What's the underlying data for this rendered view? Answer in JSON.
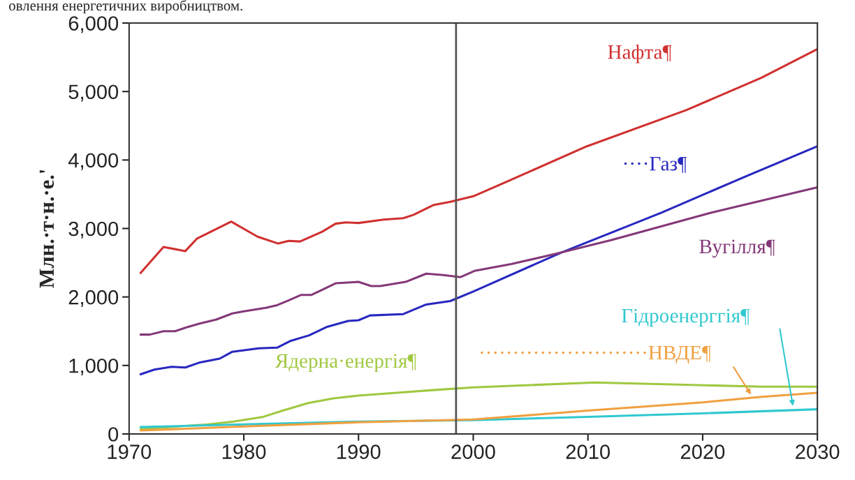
{
  "chart_data": {
    "type": "line",
    "ylabel": "Млн.·т·н.·е.'",
    "annotations": [
      "овлення енергетичних виробництвом."
    ],
    "xlim": [
      1970,
      2030
    ],
    "xticks": [
      1970,
      1980,
      1990,
      2000,
      2010,
      2020,
      2030
    ],
    "ylim": [
      0,
      6000
    ],
    "yticks": [
      {
        "value": 0,
        "label": "0"
      },
      {
        "value": 1000,
        "label": "1,000"
      },
      {
        "value": 2000,
        "label": "2,000"
      },
      {
        "value": 3000,
        "label": "3,000"
      },
      {
        "value": 4000,
        "label": "4,000"
      },
      {
        "value": 5000,
        "label": "5,000"
      },
      {
        "value": 6000,
        "label": "6,000"
      }
    ],
    "grid": false,
    "legend": false,
    "marker": "none",
    "line_style": "solid",
    "ref_lines": [
      {
        "axis": "x",
        "value": 1998.5,
        "color": "#555555"
      }
    ],
    "series": [
      {
        "name": "Нафта¶",
        "color": "#d03030",
        "x": [
          1971,
          1973,
          1974.9,
          1975.9,
          1978.9,
          1981.2,
          1983,
          1983.9,
          1984.9,
          1986.8,
          1988,
          1988.9,
          1990,
          1992.2,
          1993.9,
          1994.8,
          1996.5,
          1998,
          2000,
          2002.2,
          2009.9,
          2018.6,
          2025.1,
          2030
        ],
        "values": [
          2350,
          2730,
          2670,
          2850,
          3100,
          2880,
          2780,
          2820,
          2810,
          2950,
          3070,
          3090,
          3080,
          3130,
          3150,
          3200,
          3340,
          3390,
          3470,
          3630,
          4200,
          4730,
          5200,
          5620
        ]
      },
      {
        "name": "····Газ¶",
        "color": "#2828c0",
        "x": [
          1971,
          1972.2,
          1973.7,
          1974.9,
          1976.1,
          1977.9,
          1979,
          1981.3,
          1982.9,
          1984.1,
          1985.7,
          1987.2,
          1989.1,
          1990,
          1991,
          1993.9,
          1995.9,
          1998,
          2000,
          2007.7,
          2016.4,
          2022.9,
          2030
        ],
        "values": [
          870,
          940,
          980,
          970,
          1040,
          1100,
          1200,
          1250,
          1260,
          1360,
          1440,
          1560,
          1650,
          1660,
          1730,
          1750,
          1890,
          1940,
          2080,
          2650,
          3230,
          3700,
          4200
        ]
      },
      {
        "name": "Вугілля¶",
        "color": "#843878",
        "x": [
          1971,
          1971.8,
          1973,
          1974,
          1974.9,
          1976.1,
          1977.6,
          1979,
          1980,
          1981.9,
          1982.9,
          1983.9,
          1985,
          1985.9,
          1986.9,
          1988,
          1990,
          1991.1,
          1991.9,
          1994.1,
          1995.9,
          1997.4,
          1998.9,
          2000.1,
          2003.3,
          2007.2,
          2012,
          2020.7,
          2030
        ],
        "values": [
          1450,
          1450,
          1500,
          1500,
          1550,
          1610,
          1670,
          1760,
          1790,
          1840,
          1880,
          1950,
          2030,
          2030,
          2110,
          2200,
          2220,
          2160,
          2160,
          2220,
          2340,
          2320,
          2290,
          2380,
          2480,
          2630,
          2830,
          3230,
          3600
        ]
      },
      {
        "name": "Ядерна·енергія¶",
        "color": "#a0c840",
        "x": [
          1971,
          1976.9,
          1979.1,
          1981.7,
          1983.4,
          1985.6,
          1987.8,
          1990,
          1993.3,
          1996.5,
          2000,
          2010.6,
          2017.9,
          2025.2,
          2030
        ],
        "values": [
          70,
          140,
          180,
          250,
          340,
          450,
          520,
          560,
          600,
          640,
          680,
          750,
          720,
          690,
          690
        ]
      },
      {
        "name": "Гідроенерггія¶",
        "color": "#30c8d0",
        "x": [
          1971,
          1980,
          1990,
          2000,
          2010,
          2020,
          2030
        ],
        "values": [
          100,
          140,
          180,
          200,
          250,
          300,
          360
        ]
      },
      {
        "name": "·························НВДЕ¶",
        "color": "#f0a040",
        "x": [
          1971,
          1980,
          1990,
          2000,
          2010,
          2020,
          2025,
          2030
        ],
        "values": [
          50,
          110,
          170,
          210,
          340,
          460,
          540,
          600
        ]
      }
    ]
  }
}
